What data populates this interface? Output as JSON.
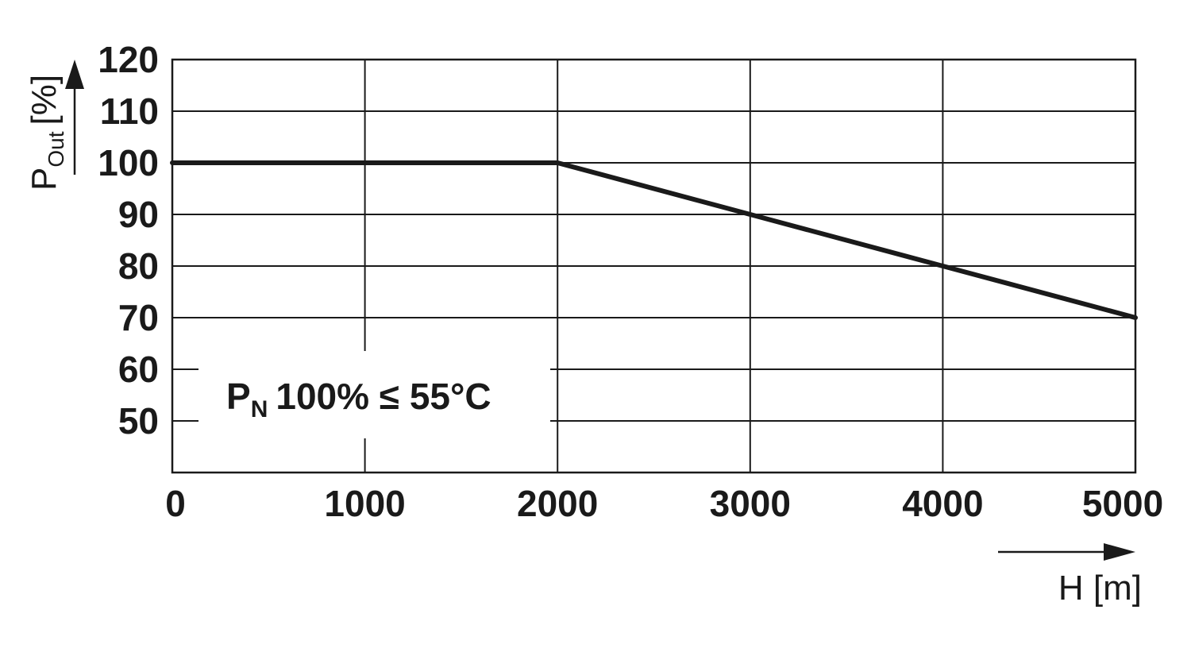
{
  "chart_data": {
    "type": "line",
    "x": [
      0,
      2000,
      3000,
      4000,
      5000
    ],
    "series": [
      {
        "values": [
          100,
          100,
          90,
          80,
          70
        ]
      }
    ],
    "xlim": [
      0,
      5000
    ],
    "ylim": [
      40,
      120
    ],
    "x_ticks": [
      "0",
      "1000",
      "2000",
      "3000",
      "4000",
      "5000"
    ],
    "y_ticks": [
      "120",
      "110",
      "100",
      "90",
      "80",
      "70",
      "60",
      "50"
    ],
    "xlabel": "H [m]",
    "ylabel": {
      "main": "P",
      "subscript": "Out",
      "unit": "[%]"
    },
    "annotation": {
      "main": "P",
      "subscript": "N",
      "text": "100% ≤ 55°C"
    },
    "grid": true,
    "colors": {
      "line": "#1a1a1a",
      "grid": "#1a1a1a",
      "background": "#ffffff"
    }
  }
}
